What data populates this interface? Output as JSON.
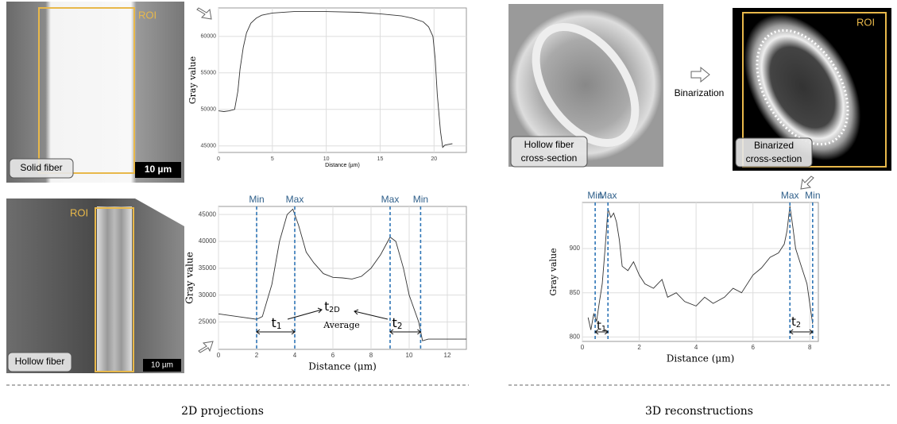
{
  "panels": {
    "solid_roi": "ROI",
    "solid_label": "Solid fiber",
    "solid_scale": "10 µm",
    "hollow_roi": "ROI",
    "hollow_label": "Hollow fiber",
    "hollow_scale": "10 µm",
    "cross_label": [
      "Hollow fiber",
      "cross-section"
    ],
    "binarization": "Binarization",
    "bin_roi": "ROI",
    "bin_label": [
      "Binarized",
      "cross-section"
    ]
  },
  "captions": [
    "2D projections",
    "3D reconstructions"
  ],
  "chart_data": [
    {
      "type": "line",
      "xlabel": "Distance (µm)",
      "ylabel": "Gray value",
      "color": "#333333",
      "grid": true,
      "x": [
        0,
        0.5,
        1,
        1.5,
        1.8,
        2,
        2.3,
        2.6,
        3,
        3.5,
        4,
        5,
        7,
        10,
        13,
        15,
        17,
        18,
        19,
        19.5,
        19.9,
        20.1,
        20.3,
        20.6,
        20.8,
        21,
        21.3,
        21.7
      ],
      "values": [
        49800,
        49700,
        49800,
        50000,
        52500,
        55500,
        58500,
        60500,
        61800,
        62500,
        62900,
        63200,
        63400,
        63400,
        63300,
        63100,
        62800,
        62500,
        62000,
        61300,
        60000,
        57000,
        52000,
        47000,
        44800,
        45100,
        45200,
        45300
      ],
      "xlim": [
        0,
        23
      ],
      "ylim": [
        44100,
        63900
      ],
      "xticks": [
        0,
        5,
        10,
        15,
        20
      ],
      "yticks": [
        45000,
        50000,
        55000,
        60000
      ]
    },
    {
      "type": "line",
      "xlabel": "Distance (μm)",
      "ylabel": "Gray value",
      "color": "#333333",
      "grid": true,
      "x": [
        0,
        1,
        2,
        2.3,
        2.8,
        3.2,
        3.6,
        3.9,
        4.2,
        4.6,
        5,
        5.5,
        6,
        6.5,
        7,
        7.5,
        8,
        8.5,
        9,
        9.3,
        9.7,
        10,
        10.5,
        10.7,
        11,
        12,
        13
      ],
      "values": [
        26500,
        26000,
        25500,
        26000,
        32000,
        40000,
        45000,
        46000,
        43000,
        38000,
        36000,
        34000,
        33300,
        33200,
        33000,
        33500,
        35000,
        37500,
        40800,
        40000,
        35000,
        30000,
        25000,
        21500,
        21800,
        21800,
        21800
      ],
      "xlim": [
        0,
        13
      ],
      "ylim": [
        19900,
        46500
      ],
      "xticks": [
        0,
        2,
        4,
        6,
        8,
        10,
        12
      ],
      "yticks": [
        25000,
        30000,
        35000,
        40000,
        45000
      ],
      "markers": [
        {
          "x": 2,
          "label": "Min"
        },
        {
          "x": 4,
          "label": "Max"
        },
        {
          "x": 9,
          "label": "Max"
        },
        {
          "x": 10.6,
          "label": "Min"
        }
      ],
      "annotations": [
        {
          "text": "t",
          "sub": "1"
        },
        {
          "text": "t",
          "sub": "2D"
        },
        {
          "text": "Average"
        },
        {
          "text": "t",
          "sub": "2"
        }
      ]
    },
    {
      "type": "line",
      "xlabel": "Distance (μm)",
      "ylabel": "Gray value",
      "color": "#333333",
      "grid": true,
      "x": [
        0.2,
        0.3,
        0.4,
        0.5,
        0.6,
        0.7,
        0.8,
        0.9,
        1.0,
        1.1,
        1.2,
        1.3,
        1.4,
        1.6,
        1.8,
        2,
        2.2,
        2.5,
        2.8,
        3,
        3.3,
        3.6,
        4,
        4.3,
        4.6,
        5,
        5.3,
        5.6,
        6,
        6.3,
        6.6,
        6.9,
        7.1,
        7.2,
        7.3,
        7.4,
        7.5,
        7.7,
        7.9,
        8.1
      ],
      "values": [
        822,
        808,
        826,
        818,
        840,
        860,
        900,
        945,
        935,
        940,
        930,
        910,
        880,
        875,
        885,
        870,
        860,
        855,
        865,
        845,
        850,
        840,
        835,
        845,
        838,
        845,
        855,
        850,
        870,
        878,
        890,
        895,
        905,
        920,
        948,
        925,
        900,
        880,
        860,
        815
      ],
      "xlim": [
        0,
        8.3
      ],
      "ylim": [
        795,
        952
      ],
      "xticks": [
        0,
        2,
        4,
        6,
        8
      ],
      "yticks": [
        800,
        850,
        900
      ],
      "markers": [
        {
          "x": 0.45,
          "label": "Min"
        },
        {
          "x": 0.9,
          "label": "Max"
        },
        {
          "x": 7.3,
          "label": "Max"
        },
        {
          "x": 8.1,
          "label": "Min"
        }
      ],
      "annotations": [
        {
          "text": "t",
          "sub": "1"
        },
        {
          "text": "t",
          "sub": "2"
        }
      ]
    }
  ]
}
